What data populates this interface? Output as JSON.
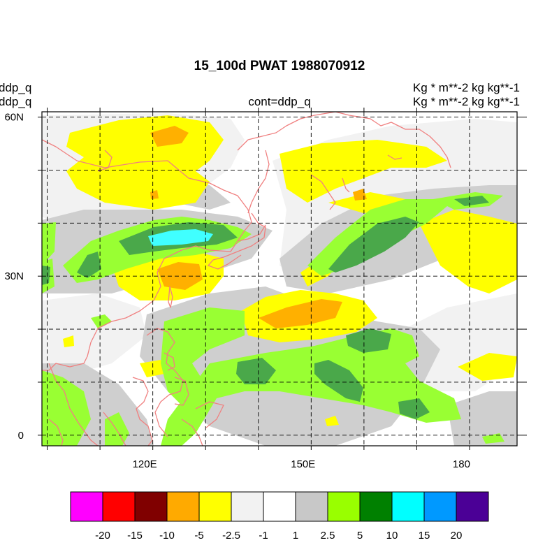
{
  "title": "15_100d PWAT  1988070912",
  "left_labels": [
    "ddp_q",
    "ddp_q"
  ],
  "right_labels": [
    "Kg  * m**-2 kg kg**-1",
    "Kg  * m**-2 kg kg**-1"
  ],
  "center_label": "cont=ddp_q",
  "map": {
    "lon_range": [
      100,
      190
    ],
    "lat_range": [
      -2,
      61
    ],
    "lon_ticks": [
      {
        "value": 120,
        "label": "120E"
      },
      {
        "value": 150,
        "label": "150E"
      },
      {
        "value": 180,
        "label": "180"
      }
    ],
    "lat_ticks": [
      {
        "value": 60,
        "label": "60N"
      },
      {
        "value": 30,
        "label": "30N"
      },
      {
        "value": 0,
        "label": "0"
      }
    ],
    "grid_lons": [
      101,
      111,
      121,
      131,
      141,
      151,
      161,
      171,
      181
    ],
    "grid_lats": [
      0,
      10,
      20,
      30,
      40,
      50,
      60
    ],
    "coastline_color": "#f08080"
  },
  "colorbar": {
    "colors": [
      "#ff00ff",
      "#ff0000",
      "#800000",
      "#ffaa00",
      "#ffff00",
      "#f2f2f2",
      "#ffffff",
      "#c8c8c8",
      "#99ff00",
      "#008000",
      "#00ffff",
      "#0099ff",
      "#4b0096"
    ],
    "labels": [
      "-20",
      "-15",
      "-10",
      "-5",
      "-2.5",
      "-1",
      "1",
      "2.5",
      "5",
      "10",
      "15",
      "20"
    ]
  }
}
